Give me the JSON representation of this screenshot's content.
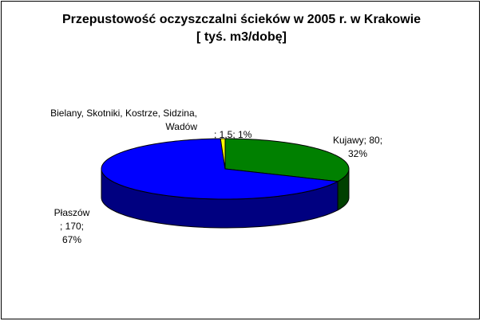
{
  "chart_data": {
    "type": "pie3d",
    "title": "Przepustowość oczyszczalni ścieków w 2005 r. w Krakowie [ tyś. m3/dobę]",
    "categories": [
      "Kujawy",
      "Płaszów",
      "Bielany, Skotniki, Kostrze, Sidzina, Wadów"
    ],
    "values": [
      80,
      170,
      1.5
    ],
    "value_labels": [
      "80",
      "170",
      "1,5"
    ],
    "percents": [
      32,
      67,
      1
    ],
    "percent_labels": [
      "32%",
      "67%",
      "1%"
    ],
    "separator": "; ",
    "colors": [
      "#008000",
      "#0000ff",
      "#ffff00"
    ],
    "side_colors": [
      "#004000",
      "#000080",
      "#808000"
    ]
  }
}
